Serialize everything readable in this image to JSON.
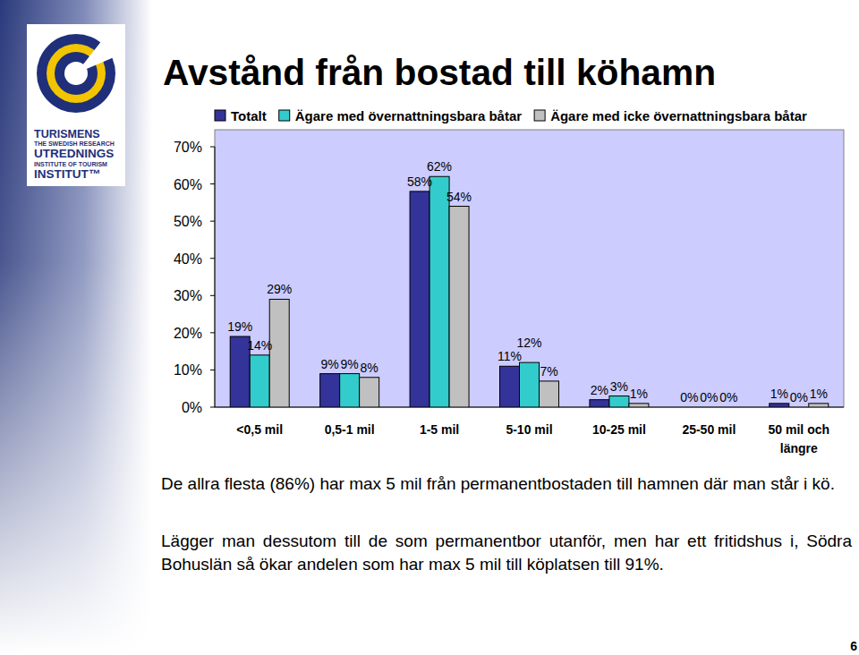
{
  "chart_data": {
    "type": "bar",
    "title": "Avstånd från bostad till köhamn",
    "categories": [
      "<0,5 mil",
      "0,5-1 mil",
      "1-5 mil",
      "5-10 mil",
      "10-25 mil",
      "25-50 mil",
      "50 mil och längre"
    ],
    "series": [
      {
        "name": "Totalt",
        "color": "#333399",
        "values": [
          19,
          9,
          58,
          11,
          2,
          0,
          1
        ],
        "value_labels": [
          "19%",
          "9%",
          "58%",
          "11%",
          "2%",
          "0%",
          "1%"
        ]
      },
      {
        "name": "Ägare med övernattningsbara båtar",
        "color": "#33cccc",
        "values": [
          14,
          9,
          62,
          12,
          3,
          0,
          0
        ],
        "value_labels": [
          "14%",
          "9%",
          "62%",
          "12%",
          "3%",
          "0%",
          "0%"
        ]
      },
      {
        "name": "Ägare med icke övernattningsbara båtar",
        "color": "#c0c0c0",
        "values": [
          29,
          8,
          54,
          7,
          1,
          0,
          1
        ],
        "value_labels": [
          "29%",
          "8%",
          "54%",
          "7%",
          "1%",
          "0%",
          "1%"
        ]
      }
    ],
    "ylim": [
      0,
      70
    ],
    "yticks": [
      {
        "value": 0,
        "label": "0%"
      },
      {
        "value": 10,
        "label": "10%"
      },
      {
        "value": 20,
        "label": "20%"
      },
      {
        "value": 30,
        "label": "30%"
      },
      {
        "value": 40,
        "label": "40%"
      },
      {
        "value": 50,
        "label": "50%"
      },
      {
        "value": 60,
        "label": "60%"
      },
      {
        "value": 70,
        "label": "70%"
      }
    ],
    "grid": false,
    "legend": "top",
    "data_labels": true
  },
  "slide": {
    "logo": [
      "TURISMENS",
      "THE SWEDISH RESEARCH",
      "UTREDNINGS",
      "INSTITUTE OF TOURISM",
      "INSTITUT™"
    ],
    "paragraphs": [
      "De allra flesta (86%) har max 5 mil från permanentbostaden till hamnen där man står i kö.",
      "Lägger man dessutom till de som permanentbor utanför, men har ett fritidshus i, Södra Bohuslän så ökar andelen som har max 5 mil till köplatsen till 91%."
    ],
    "page_number": "6"
  }
}
